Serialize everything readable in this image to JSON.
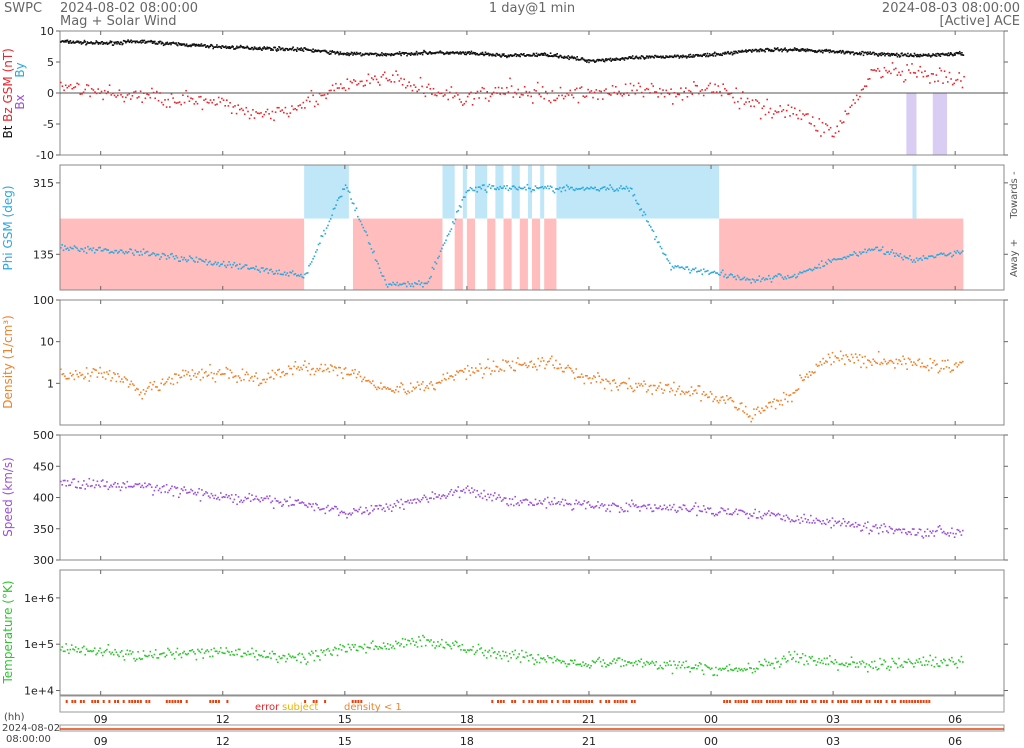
{
  "header": {
    "brand": "SWPC",
    "subtitle": "Mag + Solar Wind",
    "start_time": "2024-08-02 08:00:00",
    "center": "1 day@1 min",
    "end_time": "2024-08-03 08:00:00",
    "source": "[Active] ACE"
  },
  "hours_axis": {
    "label": "(hh)",
    "date_line1": "2024-08-02",
    "date_line2": "08:00:00",
    "ticks": [
      "09",
      "12",
      "15",
      "18",
      "21",
      "00",
      "03",
      "06"
    ]
  },
  "flags": {
    "error": "error",
    "subject": "subject",
    "density": "density < 1"
  },
  "colors": {
    "bt": "#111111",
    "bz": "#e8262b",
    "bx": "#9b4fd6",
    "by": "#2aa8e0",
    "phi": "#2aa8e0",
    "away_band": "#ffbdbd",
    "towards_band": "#bfe7f8",
    "density": "#f0822a",
    "speed": "#9b4fd6",
    "temperature": "#2ec42e",
    "flag": "#e8400c"
  },
  "chart_data": [
    {
      "type": "scatter",
      "panel": "mag",
      "ylabel_parts": [
        "Bt",
        "Bz GSM (nT)",
        "Bx",
        "By"
      ],
      "ylim": [
        -10,
        10
      ],
      "yticks": [
        "10",
        "5",
        "0",
        "-5",
        "-10"
      ],
      "x": [
        "08:00",
        "09:00",
        "10:00",
        "11:00",
        "12:00",
        "13:00",
        "14:00",
        "15:00",
        "16:00",
        "17:00",
        "18:00",
        "19:00",
        "20:00",
        "21:00",
        "22:00",
        "23:00",
        "00:00",
        "01:00",
        "02:00",
        "03:00",
        "04:00",
        "05:00",
        "06:00"
      ],
      "series": [
        {
          "name": "Bt",
          "values": [
            8.3,
            8.0,
            8.3,
            7.8,
            7.4,
            7.2,
            7.0,
            6.3,
            6.2,
            6.5,
            6.4,
            6.0,
            6.2,
            5.2,
            5.6,
            5.9,
            6.1,
            6.9,
            7.0,
            6.7,
            6.3,
            6.0,
            6.3
          ]
        },
        {
          "name": "Bz GSM",
          "values": [
            1.5,
            0.0,
            -0.5,
            -1.0,
            -2.0,
            -3.5,
            -1.5,
            1.0,
            2.5,
            0.5,
            -1.0,
            0.5,
            -0.5,
            0.0,
            0.5,
            0.0,
            1.0,
            -2.0,
            -3.0,
            -6.5,
            3.5,
            3.0,
            2.0
          ]
        }
      ]
    },
    {
      "type": "scatter",
      "panel": "phi",
      "ylabel": "Phi GSM (deg)",
      "ylim": [
        45,
        360
      ],
      "yticks": [
        "315",
        "135"
      ],
      "right_labels": [
        "Away +",
        "Towards -"
      ],
      "x": [
        "08:00",
        "09:00",
        "10:00",
        "11:00",
        "12:00",
        "13:00",
        "14:00",
        "15:00",
        "16:00",
        "17:00",
        "18:00",
        "19:00",
        "20:00",
        "21:00",
        "22:00",
        "23:00",
        "00:00",
        "01:00",
        "02:00",
        "03:00",
        "04:00",
        "05:00",
        "06:00"
      ],
      "series": [
        {
          "name": "Phi GSM",
          "values": [
            150,
            145,
            140,
            125,
            110,
            95,
            80,
            310,
            60,
            60,
            300,
            305,
            300,
            300,
            300,
            105,
            90,
            70,
            80,
            120,
            150,
            120,
            140
          ]
        }
      ]
    },
    {
      "type": "scatter",
      "panel": "density",
      "ylabel": "Density (1/cm³)",
      "yscale": "log",
      "ylim": [
        0.1,
        100
      ],
      "yticks": [
        "100",
        "10",
        "1"
      ],
      "x": [
        "08:00",
        "09:00",
        "10:00",
        "11:00",
        "12:00",
        "13:00",
        "14:00",
        "15:00",
        "16:00",
        "17:00",
        "18:00",
        "19:00",
        "20:00",
        "21:00",
        "22:00",
        "23:00",
        "00:00",
        "01:00",
        "02:00",
        "03:00",
        "04:00",
        "05:00",
        "06:00"
      ],
      "series": [
        {
          "name": "Density",
          "values": [
            1.5,
            1.8,
            0.5,
            1.5,
            1.8,
            1.2,
            2.5,
            2.0,
            0.7,
            0.8,
            2.0,
            2.8,
            3.0,
            1.2,
            0.9,
            0.7,
            0.5,
            0.15,
            0.5,
            4.0,
            3.5,
            3.0,
            2.5
          ]
        }
      ]
    },
    {
      "type": "scatter",
      "panel": "speed",
      "ylabel": "Speed (km/s)",
      "ylim": [
        300,
        500
      ],
      "yticks": [
        "500",
        "450",
        "400",
        "350",
        "300"
      ],
      "x": [
        "08:00",
        "09:00",
        "10:00",
        "11:00",
        "12:00",
        "13:00",
        "14:00",
        "15:00",
        "16:00",
        "17:00",
        "18:00",
        "19:00",
        "20:00",
        "21:00",
        "22:00",
        "23:00",
        "00:00",
        "01:00",
        "02:00",
        "03:00",
        "04:00",
        "05:00",
        "06:00"
      ],
      "series": [
        {
          "name": "Speed",
          "values": [
            425,
            420,
            418,
            410,
            400,
            395,
            390,
            375,
            385,
            400,
            410,
            395,
            392,
            388,
            385,
            382,
            380,
            375,
            368,
            360,
            352,
            345,
            345
          ]
        }
      ]
    },
    {
      "type": "scatter",
      "panel": "temperature",
      "ylabel": "Temperature (°K)",
      "yscale": "log",
      "ylim": [
        8000,
        4000000
      ],
      "yticks": [
        "1e+6",
        "1e+5",
        "1e+4"
      ],
      "x": [
        "08:00",
        "09:00",
        "10:00",
        "11:00",
        "12:00",
        "13:00",
        "14:00",
        "15:00",
        "16:00",
        "17:00",
        "18:00",
        "19:00",
        "20:00",
        "21:00",
        "22:00",
        "23:00",
        "00:00",
        "01:00",
        "02:00",
        "03:00",
        "04:00",
        "05:00",
        "06:00"
      ],
      "series": [
        {
          "name": "Temperature",
          "values": [
            90000,
            70000,
            55000,
            60000,
            70000,
            55000,
            50000,
            80000,
            90000,
            120000,
            80000,
            60000,
            45000,
            40000,
            40000,
            35000,
            28000,
            30000,
            50000,
            40000,
            35000,
            40000,
            40000
          ]
        }
      ]
    }
  ]
}
